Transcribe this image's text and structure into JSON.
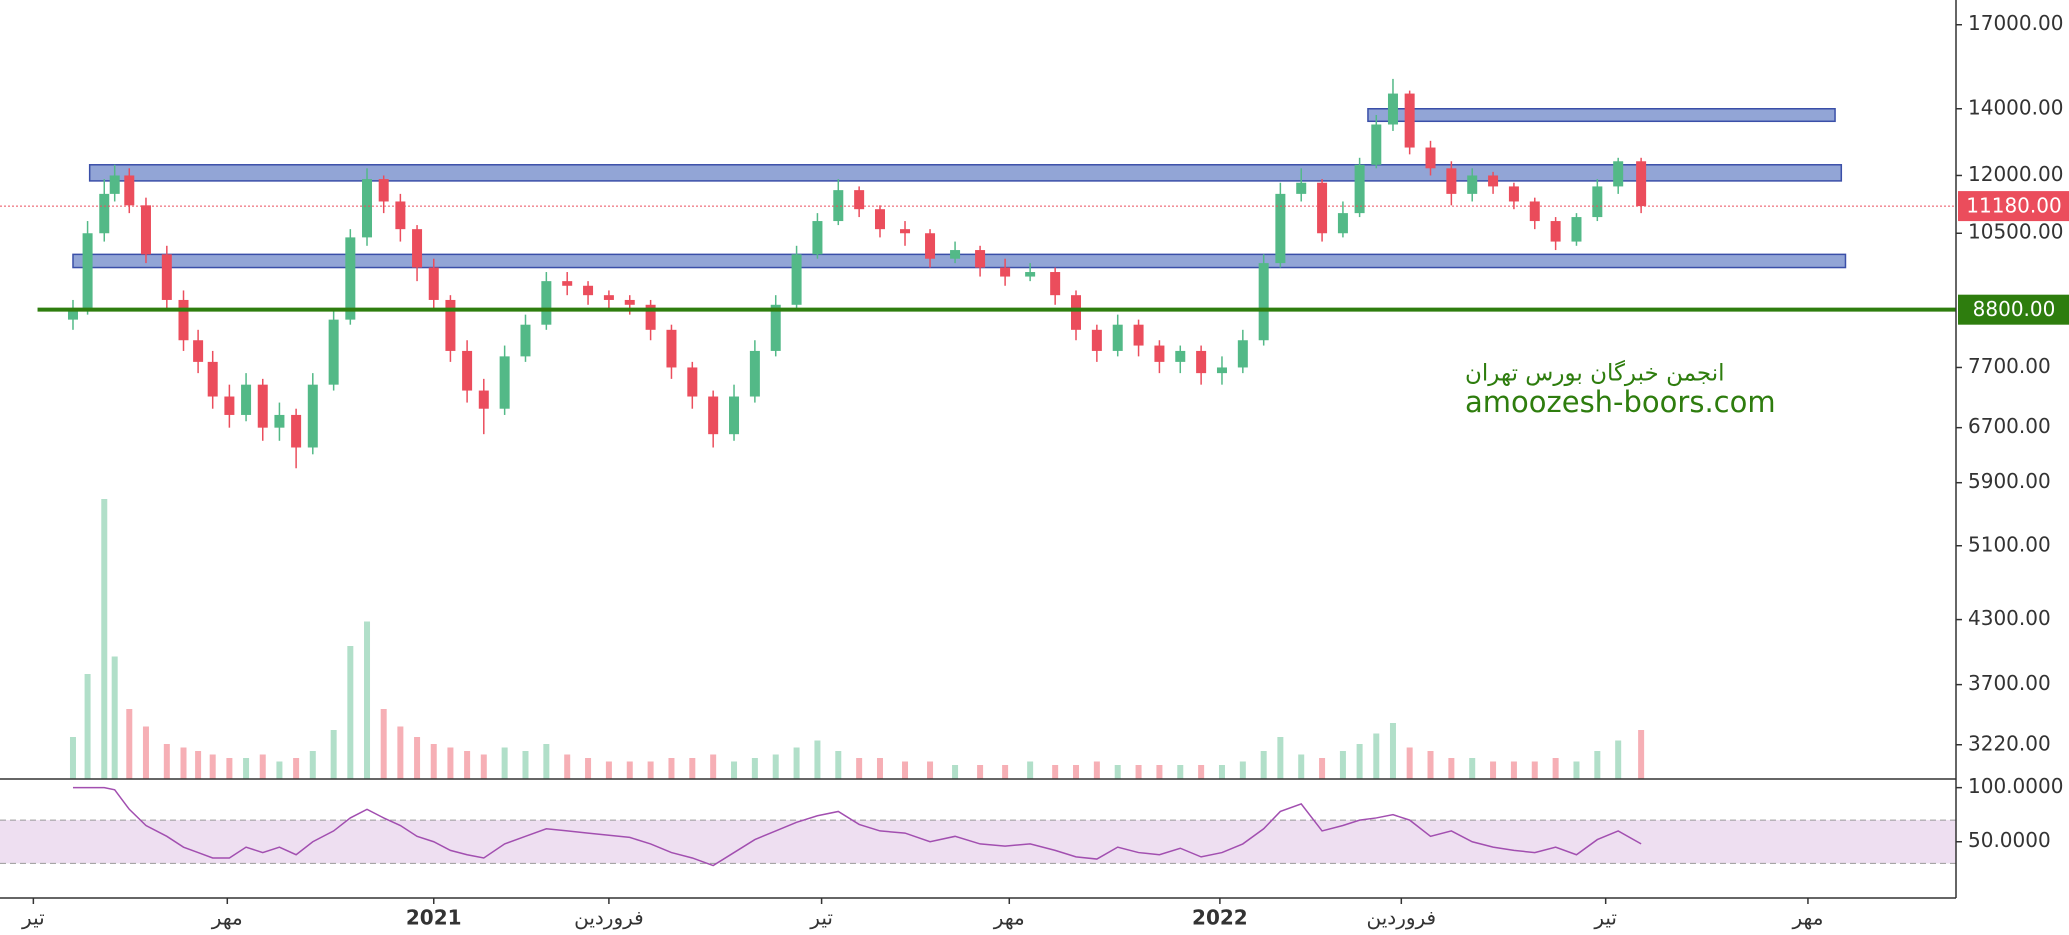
{
  "chart_data": [
    {
      "type": "candlestick",
      "log_scale": true,
      "xlim": [
        0,
        938
      ],
      "ylim": [
        2975,
        18000
      ],
      "xticks": [
        {
          "value": 16,
          "label": "تیر"
        },
        {
          "value": 109,
          "label": "مهر"
        },
        {
          "value": 208,
          "label": "2021"
        },
        {
          "value": 292,
          "label": "فروردین"
        },
        {
          "value": 394,
          "label": "تیر"
        },
        {
          "value": 484,
          "label": "مهر"
        },
        {
          "value": 585,
          "label": "2022"
        },
        {
          "value": 672,
          "label": "فروردین"
        },
        {
          "value": 770,
          "label": "تیر"
        },
        {
          "value": 867,
          "label": "مهر"
        }
      ],
      "yticks": [
        {
          "value": 17000,
          "label": "17000.00"
        },
        {
          "value": 14000,
          "label": "14000.00"
        },
        {
          "value": 12000,
          "label": "12000.00"
        },
        {
          "value": 10500,
          "label": "10500.00"
        },
        {
          "value": 7700,
          "label": "7700.00"
        },
        {
          "value": 6700,
          "label": "6700.00"
        },
        {
          "value": 5900,
          "label": "5900.00"
        },
        {
          "value": 5100,
          "label": "5100.00"
        },
        {
          "value": 4300,
          "label": "4300.00"
        },
        {
          "value": 3700,
          "label": "3700.00"
        },
        {
          "value": 3220,
          "label": "3220.00"
        }
      ],
      "up_color": "#53b987",
      "down_color": "#eb4d5c",
      "x": [
        35,
        42,
        50,
        55,
        62,
        70,
        80,
        88,
        95,
        102,
        110,
        118,
        126,
        134,
        142,
        150,
        160,
        168,
        176,
        184,
        192,
        200,
        208,
        216,
        224,
        232,
        242,
        252,
        262,
        272,
        282,
        292,
        302,
        312,
        322,
        332,
        342,
        352,
        362,
        372,
        382,
        392,
        402,
        412,
        422,
        434,
        446,
        458,
        470,
        482,
        494,
        506,
        516,
        526,
        536,
        546,
        556,
        566,
        576,
        586,
        596,
        606,
        614,
        624,
        634,
        644,
        652,
        660,
        668,
        676,
        686,
        696,
        706,
        716,
        726,
        736,
        746,
        756,
        766,
        776,
        787
      ],
      "open": [
        8600,
        8800,
        10500,
        11500,
        12000,
        11200,
        10000,
        9000,
        8200,
        7800,
        7200,
        6900,
        7400,
        6700,
        6900,
        6400,
        7400,
        8600,
        10400,
        11900,
        11300,
        10600,
        9700,
        9000,
        8000,
        7300,
        7000,
        7900,
        8500,
        9400,
        9300,
        9100,
        9000,
        8900,
        8400,
        7700,
        7200,
        6600,
        7200,
        8000,
        8900,
        10000,
        10800,
        11600,
        11100,
        10600,
        10500,
        9900,
        10100,
        9700,
        9500,
        9600,
        9100,
        8400,
        8000,
        8500,
        8100,
        7800,
        8000,
        7600,
        7700,
        8200,
        9800,
        11500,
        11800,
        10500,
        11000,
        12300,
        13500,
        14500,
        12800,
        12200,
        11500,
        12000,
        11700,
        11300,
        10800,
        10300,
        10900,
        11700,
        12400
      ],
      "high": [
        9000,
        10800,
        11900,
        12300,
        12200,
        11400,
        10200,
        9200,
        8400,
        8000,
        7400,
        7600,
        7500,
        7100,
        7000,
        7600,
        8800,
        10600,
        12200,
        12000,
        11500,
        10700,
        9900,
        9100,
        8200,
        7500,
        8100,
        8700,
        9600,
        9600,
        9400,
        9200,
        9100,
        9000,
        8500,
        7800,
        7300,
        7400,
        8200,
        9100,
        10200,
        11000,
        11900,
        11700,
        11200,
        10800,
        10600,
        10300,
        10200,
        9900,
        9800,
        9700,
        9200,
        8500,
        8700,
        8600,
        8200,
        8100,
        8100,
        7900,
        8400,
        10000,
        11800,
        12200,
        11900,
        11300,
        12500,
        13800,
        15000,
        14600,
        13000,
        12400,
        12200,
        12100,
        11800,
        11400,
        10900,
        11000,
        11900,
        12500,
        12500
      ],
      "low": [
        8400,
        8700,
        10300,
        11300,
        11000,
        9800,
        8800,
        8000,
        7600,
        7000,
        6700,
        6800,
        6500,
        6500,
        6100,
        6300,
        7300,
        8500,
        10200,
        11000,
        10300,
        9400,
        8800,
        7800,
        7100,
        6600,
        6900,
        7800,
        8400,
        9100,
        8900,
        8800,
        8700,
        8200,
        7500,
        7000,
        6400,
        6500,
        7100,
        7900,
        8800,
        9900,
        10700,
        10900,
        10400,
        10200,
        9700,
        9800,
        9500,
        9300,
        9400,
        8900,
        8200,
        7800,
        7900,
        7900,
        7600,
        7600,
        7400,
        7400,
        7600,
        8100,
        9700,
        11300,
        10300,
        10400,
        10900,
        12200,
        13300,
        12600,
        12000,
        11200,
        11300,
        11500,
        11100,
        10600,
        10100,
        10200,
        10800,
        11500,
        11000
      ],
      "close": [
        8800,
        10500,
        11500,
        12000,
        11200,
        10000,
        9000,
        8200,
        7800,
        7200,
        6900,
        7400,
        6700,
        6900,
        6400,
        7400,
        8600,
        10400,
        11900,
        11300,
        10600,
        9700,
        9000,
        8000,
        7300,
        7000,
        7900,
        8500,
        9400,
        9300,
        9100,
        9000,
        8900,
        8400,
        7700,
        7200,
        6600,
        7200,
        8000,
        8900,
        10000,
        10800,
        11600,
        11100,
        10600,
        10500,
        9900,
        10100,
        9700,
        9500,
        9600,
        9100,
        8400,
        8000,
        8500,
        8100,
        7800,
        8000,
        7600,
        7700,
        8200,
        9800,
        11500,
        11800,
        10500,
        11000,
        12300,
        13500,
        14500,
        12800,
        12200,
        11500,
        12000,
        11700,
        11300,
        10800,
        10300,
        10900,
        11700,
        12400,
        11180
      ],
      "volume": [
        120,
        300,
        800,
        350,
        200,
        150,
        100,
        90,
        80,
        70,
        60,
        60,
        70,
        50,
        60,
        80,
        140,
        380,
        450,
        200,
        150,
        120,
        100,
        90,
        80,
        70,
        90,
        80,
        100,
        70,
        60,
        50,
        50,
        50,
        60,
        60,
        70,
        50,
        60,
        70,
        90,
        110,
        80,
        60,
        60,
        50,
        50,
        40,
        40,
        40,
        50,
        40,
        40,
        50,
        40,
        40,
        40,
        40,
        40,
        40,
        50,
        80,
        120,
        70,
        60,
        80,
        100,
        130,
        160,
        90,
        80,
        60,
        60,
        50,
        50,
        50,
        60,
        50,
        80,
        110,
        140
      ],
      "zones": [
        {
          "ymin": 13600,
          "ymax": 14000,
          "xmin": 656,
          "xmax": 880
        },
        {
          "ymin": 11850,
          "ymax": 12300,
          "xmin": 43,
          "xmax": 883
        },
        {
          "ymin": 9700,
          "ymax": 10000,
          "xmin": 35,
          "xmax": 885
        }
      ],
      "zone_color": "#7f95cf",
      "hline": {
        "value": 8800,
        "label": "8800.00",
        "color": "#2e7d0e",
        "xmin": 18
      },
      "last_price": {
        "value": 11180,
        "label": "11180.00",
        "color": "#eb4d5c"
      },
      "watermark": [
        "انجمن خبرگان بورس تهران",
        "amoozesh-boors.com"
      ]
    },
    {
      "type": "line",
      "ylim": [
        -2,
        108
      ],
      "yticks": [
        {
          "value": 100,
          "label": "100.0000"
        },
        {
          "value": 50,
          "label": "50.0000"
        }
      ],
      "band": [
        30,
        70
      ],
      "color": "#a24fb0",
      "values": [
        100,
        100,
        100,
        98,
        80,
        65,
        55,
        45,
        40,
        35,
        35,
        45,
        40,
        45,
        38,
        50,
        60,
        72,
        80,
        72,
        65,
        55,
        50,
        42,
        38,
        35,
        48,
        55,
        62,
        60,
        58,
        56,
        54,
        48,
        40,
        35,
        28,
        40,
        52,
        60,
        68,
        74,
        78,
        66,
        60,
        58,
        50,
        55,
        48,
        46,
        48,
        42,
        36,
        34,
        45,
        40,
        38,
        44,
        36,
        40,
        48,
        62,
        78,
        85,
        60,
        65,
        70,
        72,
        75,
        70,
        55,
        60,
        50,
        45,
        42,
        40,
        45,
        38,
        52,
        60,
        48
      ]
    }
  ]
}
